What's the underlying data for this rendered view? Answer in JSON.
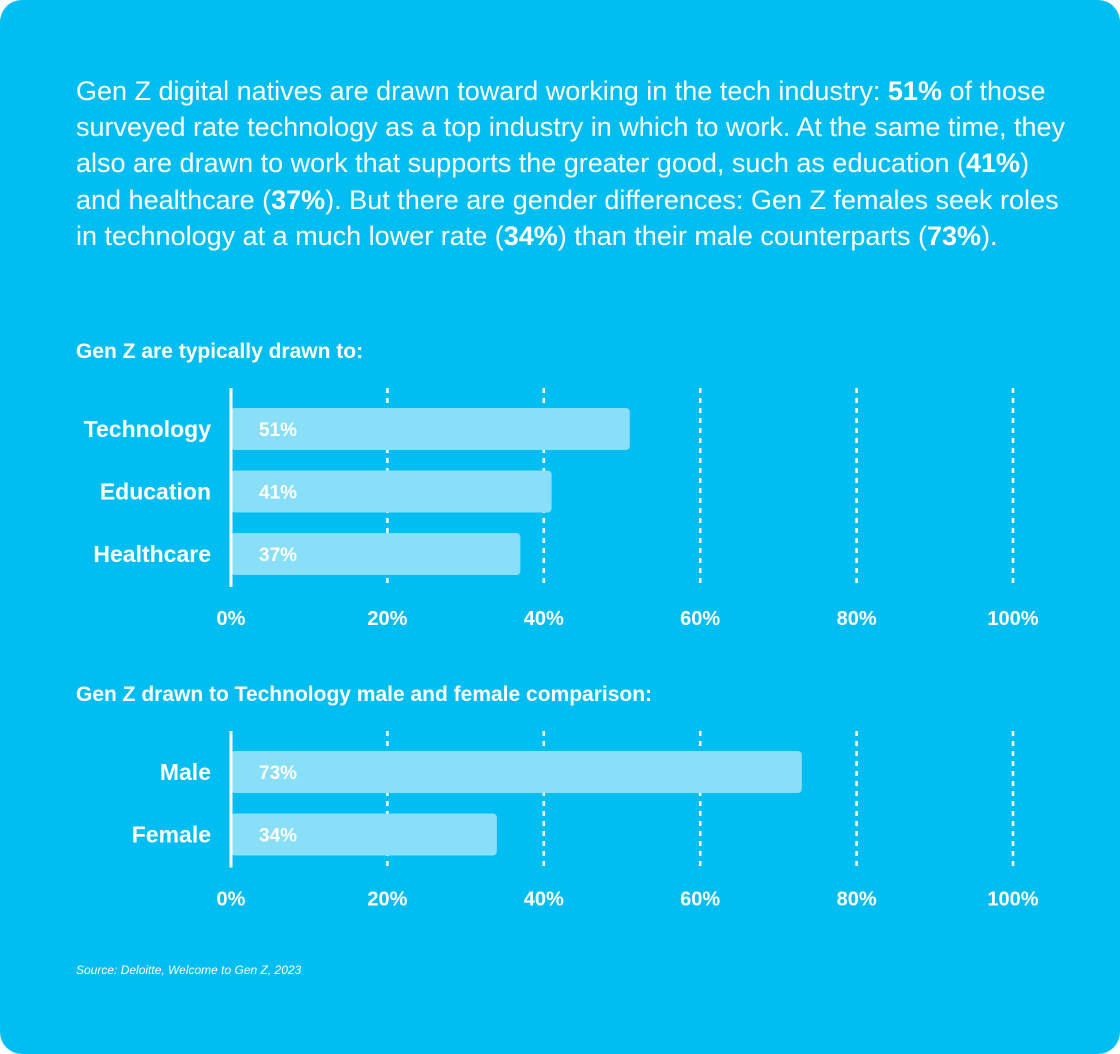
{
  "intro": [
    {
      "text": "Gen Z digital natives are drawn toward working in the tech industry: ",
      "bold": false
    },
    {
      "text": "51%",
      "bold": true
    },
    {
      "text": " of those surveyed rate technology as a top industry in which to work. At the same time, they also are drawn to work that supports the greater good, such as education (",
      "bold": false
    },
    {
      "text": "41%",
      "bold": true
    },
    {
      "text": ") and healthcare (",
      "bold": false
    },
    {
      "text": "37%",
      "bold": true
    },
    {
      "text": "). But there are gender differences: Gen Z females seek roles in technology at a much lower rate (",
      "bold": false
    },
    {
      "text": "34%",
      "bold": true
    },
    {
      "text": ") than their male counterparts (",
      "bold": false
    },
    {
      "text": "73%",
      "bold": true
    },
    {
      "text": ").",
      "bold": false
    }
  ],
  "colors": {
    "background": "#00BEF2",
    "bar": "#8ADFF8",
    "text": "#FFFFFF"
  },
  "chart_data": [
    {
      "type": "bar",
      "orientation": "horizontal",
      "title": "Gen Z are typically drawn to:",
      "categories": [
        "Technology",
        "Education",
        "Healthcare"
      ],
      "values": [
        51,
        41,
        37
      ],
      "value_labels": [
        "51%",
        "41%",
        "37%"
      ],
      "xlim": [
        0,
        100
      ],
      "xticks": [
        0,
        20,
        40,
        60,
        80,
        100
      ],
      "xtick_labels": [
        "0%",
        "20%",
        "40%",
        "60%",
        "80%",
        "100%"
      ],
      "grid": "dashed vertical"
    },
    {
      "type": "bar",
      "orientation": "horizontal",
      "title": "Gen Z drawn to Technology male and female comparison:",
      "categories": [
        "Male",
        "Female"
      ],
      "values": [
        73,
        34
      ],
      "value_labels": [
        "73%",
        "34%"
      ],
      "xlim": [
        0,
        100
      ],
      "xticks": [
        0,
        20,
        40,
        60,
        80,
        100
      ],
      "xtick_labels": [
        "0%",
        "20%",
        "40%",
        "60%",
        "80%",
        "100%"
      ],
      "grid": "dashed vertical"
    }
  ],
  "source": "Source: Deloitte, Welcome to Gen Z, 2023"
}
